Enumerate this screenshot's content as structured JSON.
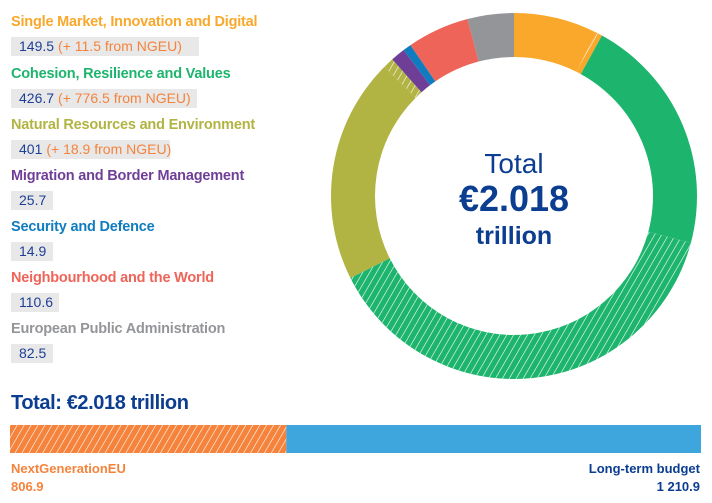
{
  "chart_data": {
    "type": "pie",
    "variant": "donut",
    "center_label": {
      "line1": "Total",
      "line2": "€2.018",
      "line3": "trillion"
    },
    "unit": "EUR billion",
    "categories": [
      {
        "name": "Single Market, Innovation and Digital",
        "long_term": 149.5,
        "ngeu": 11.5,
        "long_term_label": "149.5",
        "ngeu_label": "(+ 11.5 from NGEU)",
        "color": "#f9a82b"
      },
      {
        "name": "Cohesion, Resilience and Values",
        "long_term": 426.7,
        "ngeu": 776.5,
        "long_term_label": "426.7",
        "ngeu_label": "(+ 776.5 from NGEU)",
        "color": "#1db46d"
      },
      {
        "name": "Natural Resources and Environment",
        "long_term": 401,
        "ngeu": 18.9,
        "long_term_label": "401",
        "ngeu_label": "(+ 18.9 from NGEU)",
        "color": "#b1b443"
      },
      {
        "name": "Migration and Border Management",
        "long_term": 25.7,
        "ngeu": 0,
        "long_term_label": "25.7",
        "color": "#6f3f98"
      },
      {
        "name": "Security and Defence",
        "long_term": 14.9,
        "ngeu": 0,
        "long_term_label": "14.9",
        "color": "#0f7cc0"
      },
      {
        "name": "Neighbourhood and the World",
        "long_term": 110.6,
        "ngeu": 0,
        "long_term_label": "110.6",
        "color": "#ef6459"
      },
      {
        "name": "European Public Administration",
        "long_term": 82.5,
        "ngeu": 0,
        "long_term_label": "82.5",
        "color": "#939598"
      }
    ],
    "hatched_means": "NGEU"
  },
  "summary": {
    "title": "Total: €2.018 trillion",
    "bar": [
      {
        "name": "NextGenerationEU",
        "value": 806.9,
        "value_label": "806.9",
        "color": "#f5833c",
        "hatched": true
      },
      {
        "name": "Long-term budget",
        "value": 1210.9,
        "value_label": "1 210.9",
        "color": "#3ea6dc",
        "hatched": false
      }
    ]
  }
}
